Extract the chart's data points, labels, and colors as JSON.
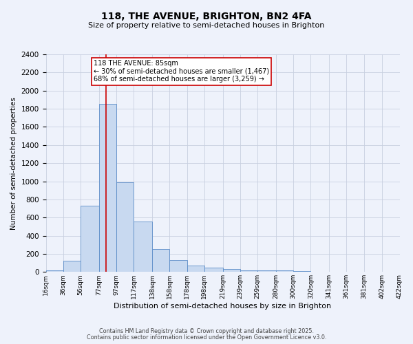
{
  "title": "118, THE AVENUE, BRIGHTON, BN2 4FA",
  "subtitle": "Size of property relative to semi-detached houses in Brighton",
  "xlabel": "Distribution of semi-detached houses by size in Brighton",
  "ylabel": "Number of semi-detached properties",
  "footnote1": "Contains HM Land Registry data © Crown copyright and database right 2025.",
  "footnote2": "Contains public sector information licensed under the Open Government Licence v3.0.",
  "bar_edges": [
    16,
    36,
    56,
    77,
    97,
    117,
    138,
    158,
    178,
    198,
    219,
    239,
    259,
    280,
    300,
    320,
    341,
    361,
    381,
    402,
    422
  ],
  "bar_heights": [
    20,
    125,
    730,
    1850,
    990,
    555,
    250,
    130,
    70,
    50,
    30,
    20,
    20,
    15,
    10,
    0,
    0,
    0,
    0,
    0
  ],
  "tick_labels": [
    "16sqm",
    "36sqm",
    "56sqm",
    "77sqm",
    "97sqm",
    "117sqm",
    "138sqm",
    "158sqm",
    "178sqm",
    "198sqm",
    "219sqm",
    "239sqm",
    "259sqm",
    "280sqm",
    "300sqm",
    "320sqm",
    "341sqm",
    "361sqm",
    "381sqm",
    "402sqm",
    "422sqm"
  ],
  "bar_color": "#c8d9f0",
  "bar_edge_color": "#5b8cc8",
  "property_line_x": 85,
  "ylim": [
    0,
    2400
  ],
  "yticks": [
    0,
    200,
    400,
    600,
    800,
    1000,
    1200,
    1400,
    1600,
    1800,
    2000,
    2200,
    2400
  ],
  "annotation_title": "118 THE AVENUE: 85sqm",
  "annotation_line1": "← 30% of semi-detached houses are smaller (1,467)",
  "annotation_line2": "68% of semi-detached houses are larger (3,259) →",
  "bg_color": "#eef2fb",
  "grid_color": "#c8d0e0",
  "line_color": "#cc0000",
  "title_fontsize": 10,
  "subtitle_fontsize": 8,
  "ylabel_fontsize": 7.5,
  "xlabel_fontsize": 8,
  "ytick_fontsize": 7.5,
  "xtick_fontsize": 6.5,
  "annot_fontsize": 7,
  "footnote_fontsize": 5.8
}
